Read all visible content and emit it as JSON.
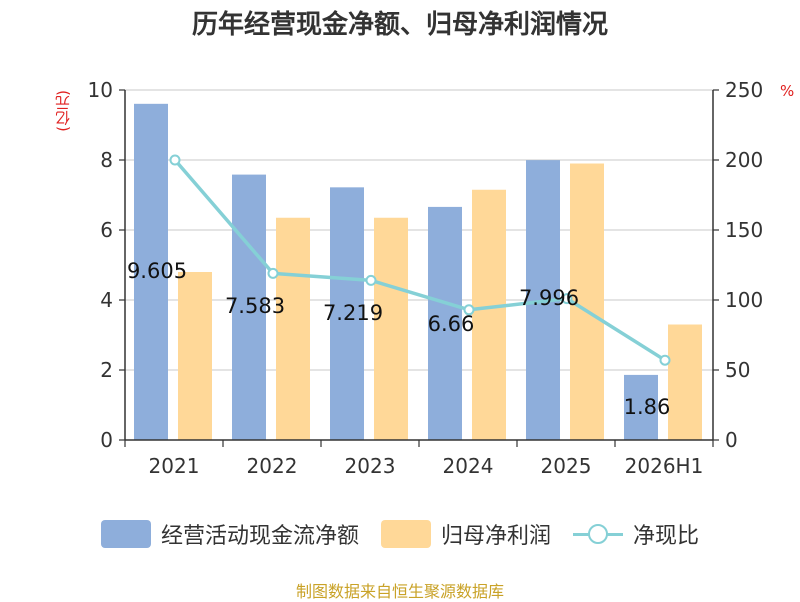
{
  "title": "历年经营现金净额、归母净利润情况",
  "source": "制图数据来自恒生聚源数据库",
  "chart_data": {
    "type": "bar",
    "categories": [
      "2021",
      "2022",
      "2023",
      "2024",
      "2025",
      "2026H1"
    ],
    "ylabel": "(亿元)",
    "ylabel_right": "%",
    "ylim": [
      0,
      10
    ],
    "ylim_right": [
      0,
      250
    ],
    "yticks": [
      0,
      2,
      4,
      6,
      8,
      10
    ],
    "yticks_right": [
      0,
      50,
      100,
      150,
      200,
      250
    ],
    "grid": true,
    "legend_position": "bottom",
    "series": [
      {
        "name": "经营活动现金流净额",
        "kind": "bar",
        "axis": "left",
        "color": "#8eaedb",
        "values": [
          9.605,
          7.583,
          7.219,
          6.66,
          7.996,
          1.86
        ],
        "labels": [
          "9.605",
          "7.583",
          "7.219",
          "6.66",
          "7.996",
          "1.86"
        ]
      },
      {
        "name": "归母净利润",
        "kind": "bar",
        "axis": "left",
        "color": "#ffd898",
        "values": [
          4.8,
          6.35,
          6.35,
          7.15,
          7.9,
          3.3
        ]
      },
      {
        "name": "净现比",
        "kind": "line",
        "axis": "right",
        "color": "#85d0d6",
        "values": [
          200,
          119,
          114,
          93,
          101,
          57
        ]
      }
    ]
  }
}
